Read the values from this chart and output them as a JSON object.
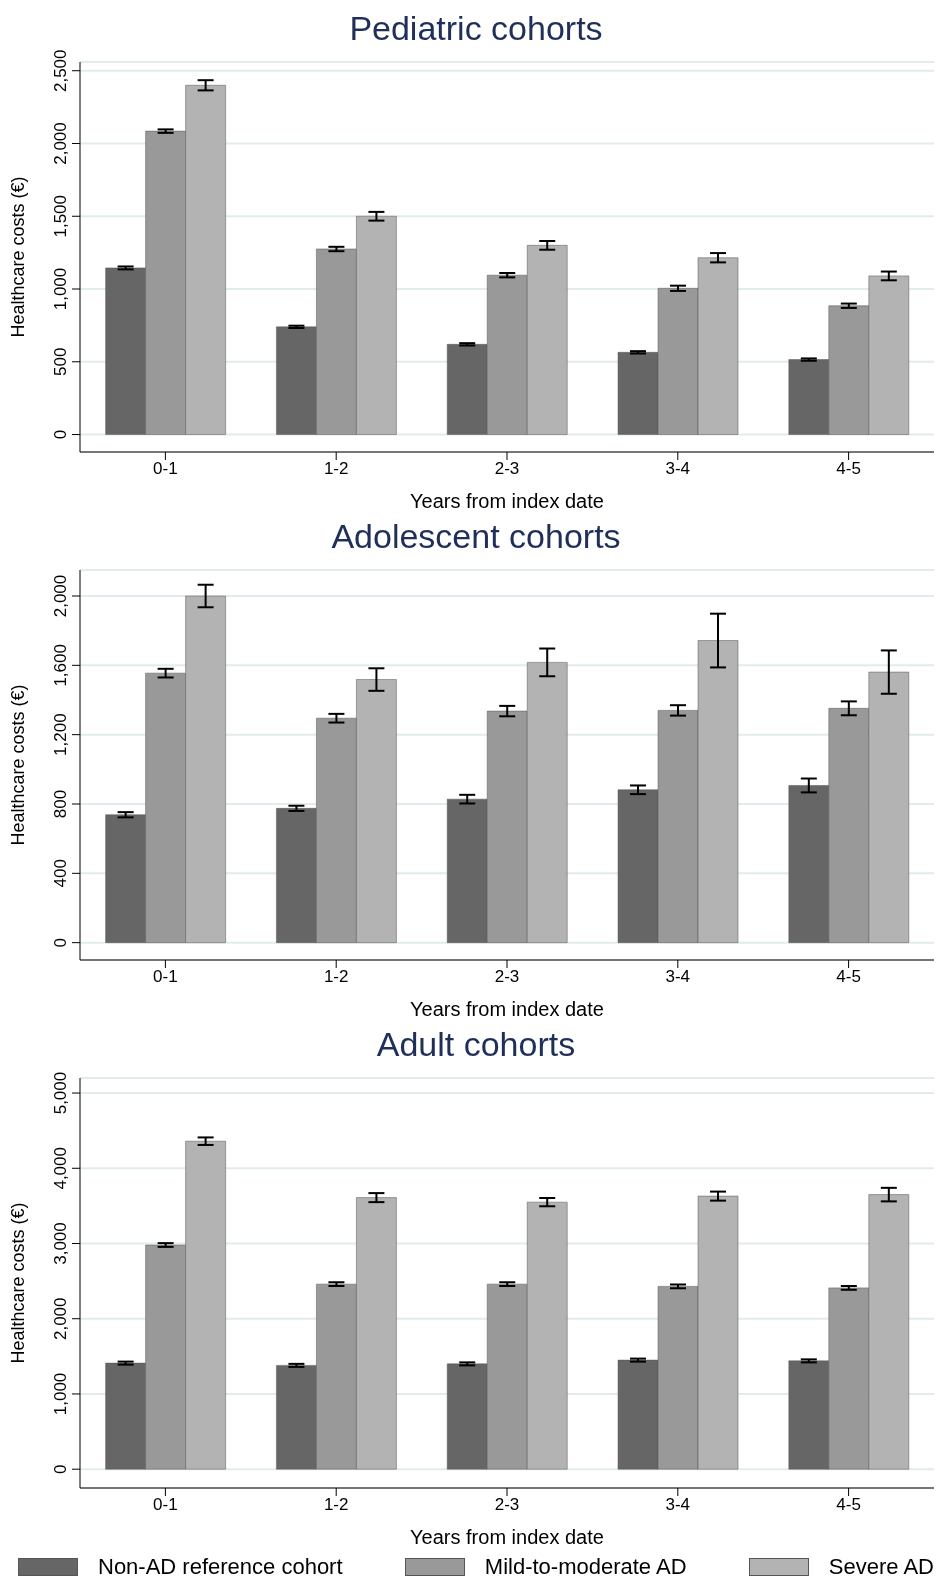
{
  "chart_data": [
    {
      "type": "bar",
      "title": "Pediatric cohorts",
      "xlabel": "Years from index date",
      "ylabel": "Healthcare costs (€)",
      "categories": [
        "0-1",
        "1-2",
        "2-3",
        "3-4",
        "4-5"
      ],
      "series": [
        {
          "color": "#666666",
          "values": [
            1145,
            740,
            620,
            565,
            515
          ],
          "errors": [
            10,
            8,
            8,
            8,
            8
          ]
        },
        {
          "color": "#999999",
          "values": [
            2085,
            1275,
            1095,
            1005,
            885
          ],
          "errors": [
            12,
            15,
            15,
            18,
            15
          ]
        },
        {
          "color": "#b3b3b3",
          "values": [
            2400,
            1500,
            1300,
            1215,
            1090
          ],
          "errors": [
            35,
            30,
            30,
            32,
            30
          ]
        }
      ],
      "ylim": [
        -120,
        2560
      ],
      "yticks": [
        0,
        {
          "value": 500,
          "label": "500"
        },
        {
          "value": 1000,
          "label": "1,000"
        },
        {
          "value": 1500,
          "label": "1,500"
        },
        {
          "value": 2000,
          "label": "2,000"
        },
        {
          "value": 2500,
          "label": "2,500"
        }
      ],
      "grid": "y",
      "legend": false
    },
    {
      "type": "bar",
      "title": "Adolescent cohorts",
      "xlabel": "Years from index date",
      "ylabel": "Healthcare costs (€)",
      "categories": [
        "0-1",
        "1-2",
        "2-3",
        "3-4",
        "4-5"
      ],
      "series": [
        {
          "color": "#666666",
          "values": [
            738,
            775,
            828,
            882,
            907
          ],
          "errors": [
            15,
            15,
            25,
            25,
            40
          ]
        },
        {
          "color": "#999999",
          "values": [
            1555,
            1295,
            1336,
            1340,
            1352
          ],
          "errors": [
            25,
            25,
            30,
            30,
            40
          ]
        },
        {
          "color": "#b3b3b3",
          "values": [
            2000,
            1518,
            1617,
            1743,
            1561
          ],
          "errors": [
            65,
            65,
            80,
            155,
            125
          ]
        }
      ],
      "ylim": [
        -100,
        2150
      ],
      "yticks": [
        0,
        400,
        800,
        {
          "value": 1200,
          "label": "1,200"
        },
        {
          "value": 1600,
          "label": "1,600"
        },
        {
          "value": 2000,
          "label": "2,000"
        }
      ],
      "grid": "y",
      "legend": false
    },
    {
      "type": "bar",
      "title": "Adult cohorts",
      "xlabel": "Years from index date",
      "ylabel": "Healthcare costs (€)",
      "categories": [
        "0-1",
        "1-2",
        "2-3",
        "3-4",
        "4-5"
      ],
      "series": [
        {
          "name": "Non-AD reference cohort",
          "color": "#666666",
          "values": [
            1410,
            1380,
            1400,
            1450,
            1440
          ],
          "errors": [
            20,
            20,
            20,
            20,
            20
          ]
        },
        {
          "name": "Mild-to-moderate AD",
          "color": "#999999",
          "values": [
            2980,
            2460,
            2460,
            2430,
            2410
          ],
          "errors": [
            25,
            25,
            25,
            25,
            25
          ]
        },
        {
          "name": "Severe AD",
          "color": "#b3b3b3",
          "values": [
            4360,
            3610,
            3550,
            3630,
            3650
          ],
          "errors": [
            50,
            60,
            55,
            60,
            90
          ]
        }
      ],
      "ylim": [
        -250,
        5200
      ],
      "yticks": [
        0,
        {
          "value": 1000,
          "label": "1,000"
        },
        {
          "value": 2000,
          "label": "2,000"
        },
        {
          "value": 3000,
          "label": "3,000"
        },
        {
          "value": 4000,
          "label": "4,000"
        },
        {
          "value": 5000,
          "label": "5,000"
        }
      ],
      "grid": "y",
      "legend": "bottom"
    }
  ]
}
